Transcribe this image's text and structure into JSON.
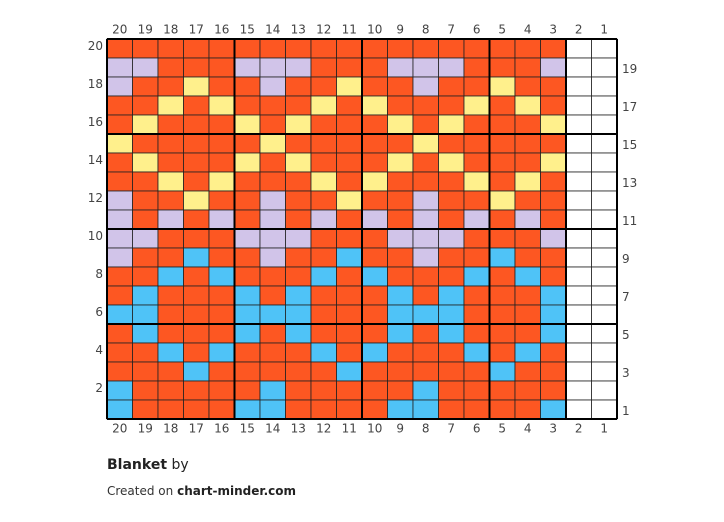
{
  "chart": {
    "columns": [
      20,
      19,
      18,
      17,
      16,
      15,
      14,
      13,
      12,
      11,
      10,
      9,
      8,
      7,
      6,
      5,
      4,
      3,
      2,
      1
    ],
    "palette": {
      "O": "#fd5722",
      "L": "#d1c4e9",
      "Y": "#fff08c",
      "B": "#4fc3f7",
      "W": "#ffffff"
    },
    "rows": [
      {
        "number": 20,
        "cells": "OOOOOOOOOOOOOOOOOOWW"
      },
      {
        "number": 19,
        "cells": "LLOOOLLLOOOLLLOOOLWW"
      },
      {
        "number": 18,
        "cells": "LOOYOOLOOYOOLOOYOOWW"
      },
      {
        "number": 17,
        "cells": "OOYOYOOOYOYOOOYOYOWW"
      },
      {
        "number": 16,
        "cells": "OYOOOYOYOOOYOYOOOYWW"
      },
      {
        "number": 15,
        "cells": "YOOOOOYOOOOOYOOOOOWW"
      },
      {
        "number": 14,
        "cells": "OYOOOYOYOOOYOYOOOYWW"
      },
      {
        "number": 13,
        "cells": "OOYOYOOOYOYOOOYOYOWW"
      },
      {
        "number": 12,
        "cells": "LOOYOOLOOYOOLOOYOOWW"
      },
      {
        "number": 11,
        "cells": "LOLOLOLOLOLOLOLOLOWW"
      },
      {
        "number": 10,
        "cells": "LLOOOLLLOOOLLLOOOLWW"
      },
      {
        "number": 9,
        "cells": "LOOBOOLOOBOOLOOBOOWW"
      },
      {
        "number": 8,
        "cells": "OOBOBOOOBOBOOOBOBOWW"
      },
      {
        "number": 7,
        "cells": "OBOOOBOBOOOBOBOOOBWW"
      },
      {
        "number": 6,
        "cells": "BBOOOBBBOOOBBBOOOBWW"
      },
      {
        "number": 5,
        "cells": "OBOOOBOBOOOBOBOOOBWW"
      },
      {
        "number": 4,
        "cells": "OOBOBOOOBOBOOOBOBOWW"
      },
      {
        "number": 3,
        "cells": "OOOBOOOOOBOOOOOBOOWW"
      },
      {
        "number": 2,
        "cells": "BOOOOOBOOOOOBOOOOOWW"
      },
      {
        "number": 1,
        "cells": "BOOOOBBOOOOBBOOOOBWW"
      }
    ]
  },
  "footer": {
    "name": "Blanket",
    "by": "by",
    "created": "Created on",
    "site": "chart-minder.com"
  }
}
